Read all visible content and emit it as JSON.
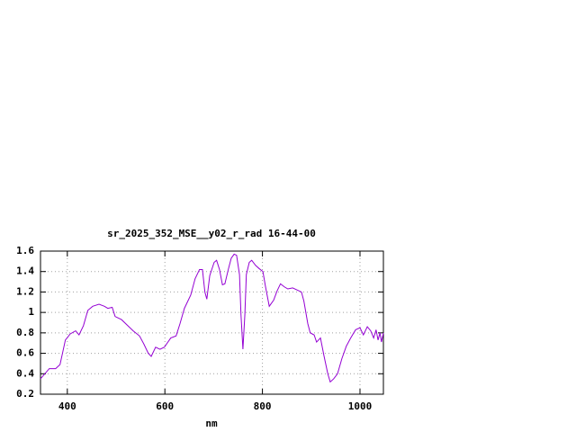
{
  "chart_data": {
    "type": "line",
    "title": "sr_2025_352_MSE__y02_r_rad 16-44-00",
    "x_label": "nm",
    "x": [
      345,
      363,
      376,
      385,
      391,
      396,
      406,
      417,
      424,
      433,
      442,
      452,
      465,
      476,
      483,
      492,
      498,
      511,
      524,
      535,
      548,
      557,
      566,
      572,
      581,
      590,
      599,
      612,
      623,
      631,
      640,
      653,
      662,
      671,
      677,
      682,
      686,
      692,
      701,
      706,
      712,
      718,
      723,
      730,
      736,
      742,
      747,
      753,
      756,
      760,
      764,
      767,
      773,
      778,
      786,
      793,
      801,
      806,
      814,
      823,
      830,
      837,
      845,
      852,
      862,
      871,
      880,
      885,
      893,
      898,
      906,
      911,
      919,
      926,
      934,
      939,
      946,
      954,
      963,
      972,
      981,
      991,
      1000,
      1007,
      1015,
      1022,
      1028,
      1033,
      1037,
      1041,
      1044,
      1048
    ],
    "series": [
      {
        "color": "#9400d3",
        "values": [
          0.35,
          0.45,
          0.45,
          0.49,
          0.62,
          0.73,
          0.79,
          0.82,
          0.78,
          0.87,
          1.02,
          1.06,
          1.08,
          1.06,
          1.04,
          1.05,
          0.96,
          0.93,
          0.87,
          0.82,
          0.77,
          0.69,
          0.6,
          0.57,
          0.66,
          0.64,
          0.66,
          0.75,
          0.77,
          0.89,
          1.04,
          1.17,
          1.33,
          1.42,
          1.42,
          1.2,
          1.13,
          1.36,
          1.49,
          1.51,
          1.42,
          1.27,
          1.28,
          1.42,
          1.53,
          1.57,
          1.56,
          1.37,
          0.98,
          0.64,
          0.98,
          1.37,
          1.49,
          1.51,
          1.46,
          1.43,
          1.4,
          1.26,
          1.06,
          1.12,
          1.21,
          1.28,
          1.25,
          1.23,
          1.24,
          1.22,
          1.2,
          1.11,
          0.89,
          0.8,
          0.78,
          0.71,
          0.75,
          0.58,
          0.4,
          0.32,
          0.35,
          0.4,
          0.55,
          0.67,
          0.75,
          0.83,
          0.85,
          0.78,
          0.86,
          0.82,
          0.75,
          0.83,
          0.73,
          0.8,
          0.71,
          0.8
        ]
      }
    ],
    "xlim": [
      345,
      1048
    ],
    "xticks": [
      400,
      600,
      800,
      1000
    ],
    "ylim": [
      0.2,
      1.6
    ],
    "yticks": [
      0.2,
      0.4,
      0.6,
      0.8,
      1,
      1.2,
      1.4,
      1.6
    ],
    "grid": true
  }
}
